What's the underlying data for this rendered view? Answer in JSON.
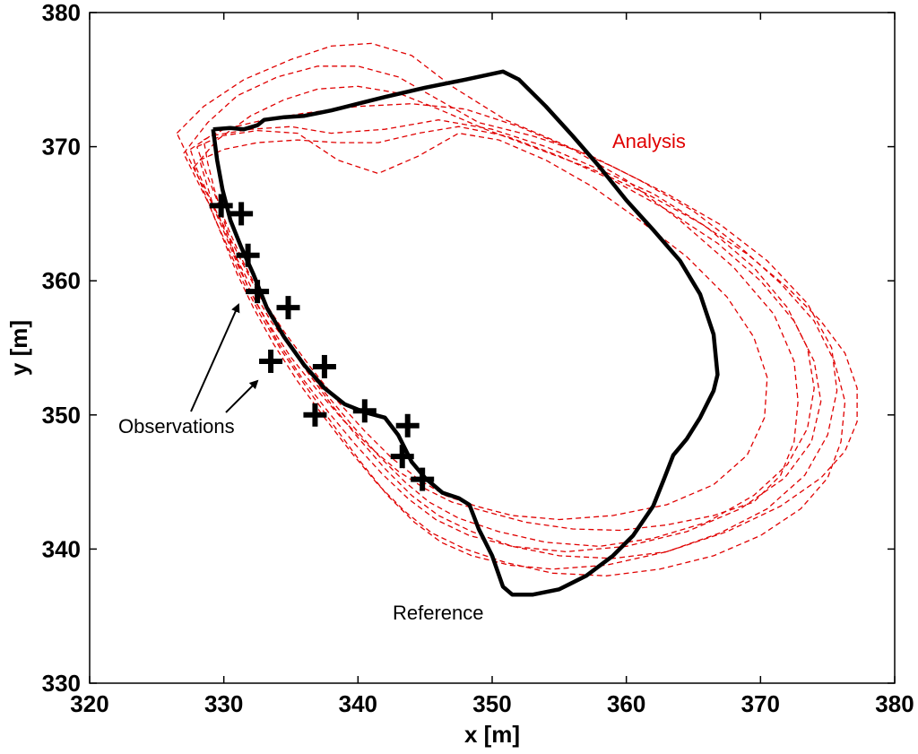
{
  "chart_data": {
    "type": "line",
    "title": "",
    "xlabel": "x [m]",
    "ylabel": "y [m]",
    "xlim": [
      320,
      380
    ],
    "ylim": [
      330,
      380
    ],
    "xticks": [
      "320",
      "330",
      "340",
      "350",
      "360",
      "370",
      "380"
    ],
    "yticks": [
      "330",
      "340",
      "350",
      "360",
      "370",
      "380"
    ],
    "grid": false,
    "annotations": {
      "analysis": "Analysis",
      "observations": "Observations",
      "reference": "Reference"
    },
    "colors": {
      "reference": "#000000",
      "analysis": "#e00000",
      "observations": "#000000"
    },
    "series": [
      {
        "role": "reference",
        "style": "solid",
        "x": [
          329.2,
          330.5,
          331.5,
          332.5,
          333.0,
          334.5,
          336.0,
          338.0,
          340.0,
          342.0,
          345.0,
          348.0,
          350.8,
          352.0,
          354.0,
          356.0,
          358.0,
          360.0,
          362.0,
          364.0,
          365.5,
          366.5,
          366.8,
          366.5,
          365.5,
          364.5,
          363.5,
          362.8,
          362.0,
          360.5,
          359.0,
          357.0,
          355.0,
          353.0,
          351.5,
          350.8,
          350.0,
          349.0,
          348.3,
          347.5,
          346.3,
          345.0,
          344.0,
          343.0,
          342.0,
          340.5,
          339.0,
          337.5,
          336.0,
          334.5,
          333.2,
          332.2,
          331.3,
          330.5,
          329.9,
          329.5,
          329.2
        ],
        "y": [
          371.3,
          371.4,
          371.3,
          371.6,
          372.0,
          372.2,
          372.3,
          372.7,
          373.2,
          373.7,
          374.4,
          375.0,
          375.6,
          375.0,
          373.0,
          370.8,
          368.5,
          366.0,
          363.8,
          361.5,
          359.0,
          356.0,
          353.0,
          351.8,
          349.8,
          348.2,
          347.0,
          345.2,
          343.2,
          341.0,
          339.5,
          338.0,
          337.0,
          336.6,
          336.6,
          337.2,
          339.5,
          341.5,
          343.3,
          343.8,
          344.2,
          345.3,
          346.5,
          348.5,
          349.8,
          350.2,
          350.8,
          352.0,
          353.7,
          355.8,
          358.0,
          360.5,
          362.5,
          364.5,
          366.8,
          369.0,
          371.3
        ]
      },
      {
        "role": "analysis",
        "style": "dashed",
        "x": [
          328.5,
          330,
          333,
          336,
          340,
          344,
          348,
          352,
          356,
          360,
          364,
          368,
          371,
          372.5,
          372.8,
          372.5,
          371.5,
          369.5,
          366.5,
          363,
          359.5,
          356,
          352.5,
          349.5,
          347,
          345,
          343,
          341,
          339,
          337,
          335,
          333.2,
          331.8,
          330.8,
          330,
          329.3,
          328.8,
          328.5
        ],
        "y": [
          370.5,
          371.3,
          372.0,
          372.5,
          373.0,
          373.2,
          372.8,
          371.5,
          369.8,
          367.5,
          364.5,
          361.0,
          357.5,
          354.0,
          351.0,
          348.0,
          345.5,
          343.5,
          342.5,
          341.8,
          341.4,
          341.5,
          342.0,
          342.8,
          343.5,
          344.5,
          345.8,
          347.5,
          349.5,
          351.8,
          354.3,
          357.0,
          359.5,
          362.0,
          364.5,
          366.8,
          368.8,
          370.5
        ]
      },
      {
        "role": "analysis",
        "style": "dashed",
        "x": [
          327.5,
          329,
          332,
          335,
          338,
          342,
          346,
          350,
          354,
          358,
          362,
          366,
          369.5,
          372,
          373.5,
          374,
          373.5,
          372,
          369.5,
          366,
          362,
          358,
          354,
          350.5,
          347.5,
          345.3,
          343.5,
          341.5,
          339.5,
          337.5,
          335.5,
          333.5,
          332,
          330.8,
          329.8,
          328.8,
          328,
          327.5
        ],
        "y": [
          369.8,
          370.8,
          371.3,
          371.5,
          371.0,
          371.3,
          372.0,
          371.3,
          370.0,
          368.3,
          366.5,
          364.0,
          361.0,
          358.0,
          355.0,
          352.0,
          349.0,
          346.3,
          344.0,
          342.0,
          340.8,
          340.2,
          340.5,
          341.3,
          342.3,
          343.5,
          345.0,
          347.0,
          349.3,
          351.7,
          354.3,
          357.0,
          359.6,
          362.0,
          364.4,
          366.5,
          368.3,
          369.8
        ]
      },
      {
        "role": "analysis",
        "style": "dashed",
        "x": [
          326.5,
          328.5,
          331.5,
          335,
          338,
          341,
          344,
          347,
          351,
          355,
          359,
          363,
          367,
          370.5,
          373.5,
          375.3,
          375.7,
          375,
          373.3,
          370.5,
          367,
          363,
          359,
          355,
          351.5,
          348.5,
          346,
          344,
          342,
          340,
          338,
          336,
          334.2,
          332.7,
          331.4,
          330.2,
          329,
          327.7,
          326.5
        ],
        "y": [
          371.0,
          373.0,
          375.0,
          376.5,
          377.5,
          377.7,
          376.8,
          374.5,
          372.0,
          370.3,
          368.5,
          366.5,
          364.2,
          361.5,
          358.3,
          355.0,
          351.8,
          348.5,
          345.5,
          343.0,
          341.2,
          339.8,
          339.3,
          339.5,
          340.2,
          341.3,
          342.5,
          344.0,
          346.0,
          348.3,
          350.8,
          353.5,
          356.2,
          358.8,
          361.3,
          363.7,
          366.0,
          368.5,
          371.0
        ]
      },
      {
        "role": "analysis",
        "style": "dashed",
        "x": [
          327,
          328.8,
          331,
          334,
          337,
          340,
          343,
          346,
          349,
          353,
          357,
          361,
          365,
          368.5,
          371.5,
          374,
          375.5,
          376.3,
          376,
          375,
          373,
          370,
          366.5,
          362.5,
          358.5,
          354.5,
          351,
          348,
          345.5,
          343.5,
          341.5,
          339.5,
          337.5,
          335.5,
          333.7,
          332.2,
          331,
          330,
          329,
          328,
          327
        ],
        "y": [
          369.5,
          371.8,
          373.8,
          375.2,
          376.0,
          376.0,
          375.2,
          373.5,
          371.8,
          370.8,
          369.5,
          367.5,
          365.2,
          362.5,
          359.8,
          357.0,
          354.0,
          351.0,
          348.0,
          345.3,
          343.0,
          341.0,
          339.5,
          338.5,
          338.0,
          338.2,
          339.0,
          340.0,
          341.2,
          342.8,
          344.8,
          347.2,
          349.8,
          352.5,
          355.3,
          358.0,
          360.5,
          363.0,
          365.5,
          367.5,
          369.5
        ]
      },
      {
        "role": "analysis",
        "style": "dashed",
        "x": [
          327.8,
          329.5,
          332,
          334.5,
          337,
          340,
          343,
          346,
          349.5,
          353.5,
          357.5,
          361.5,
          365.5,
          369,
          372,
          374.5,
          376.3,
          377.2,
          377.2,
          376.3,
          374.5,
          371.5,
          367.5,
          363,
          358.5,
          354.5,
          351.3,
          348.5,
          346.2,
          344.2,
          342.2,
          340.2,
          338.2,
          336.2,
          334.3,
          332.7,
          331.4,
          330.3,
          329.3,
          328.5,
          327.8
        ],
        "y": [
          368.5,
          370.5,
          372.3,
          373.5,
          374.3,
          374.5,
          374.0,
          372.8,
          371.3,
          369.8,
          368.3,
          366.5,
          364.3,
          362.0,
          359.5,
          357.0,
          354.6,
          352.0,
          349.5,
          347.3,
          345.3,
          343.2,
          341.3,
          339.8,
          338.8,
          338.5,
          338.8,
          339.5,
          340.5,
          342.0,
          344.0,
          346.5,
          349.2,
          352.0,
          354.8,
          357.5,
          360.0,
          362.5,
          364.7,
          366.7,
          368.5
        ]
      },
      {
        "role": "analysis",
        "style": "dashed",
        "x": [
          328.2,
          330,
          332.5,
          335.5,
          338.5,
          341.5,
          344.5,
          347.5,
          351,
          355,
          359,
          363,
          366.8,
          370,
          372.5,
          374,
          374.5,
          373.8,
          371.8,
          368.5,
          364.5,
          360,
          355.5,
          351.5,
          348.3,
          345.8,
          343.8,
          341.8,
          339.8,
          337.8,
          335.8,
          334,
          332.5,
          331.2,
          330.2,
          329.3,
          328.7,
          328.2
        ],
        "y": [
          369.0,
          369.8,
          370.3,
          370.5,
          370.3,
          370.3,
          371.0,
          371.5,
          370.8,
          369.3,
          367.5,
          365.3,
          362.8,
          360.0,
          357.0,
          354.0,
          351.0,
          348.0,
          345.3,
          343.0,
          341.3,
          340.2,
          339.8,
          340.2,
          341.0,
          342.2,
          343.7,
          345.6,
          347.8,
          350.2,
          352.8,
          355.5,
          358.2,
          360.8,
          363.2,
          365.3,
          367.3,
          369.0
        ]
      },
      {
        "role": "analysis",
        "style": "dashed",
        "x": [
          328,
          329.8,
          332.5,
          335.5,
          338.5,
          341.5,
          344.5,
          347.5,
          350.5,
          354,
          357.5,
          361,
          364.5,
          367.5,
          369.5,
          370.5,
          370.3,
          369,
          366.5,
          363,
          359,
          355,
          351.5,
          348.8,
          346.5,
          344.5,
          342.5,
          340.5,
          338.5,
          336.5,
          334.5,
          332.8,
          331.5,
          330.4,
          329.5,
          328.7,
          328
        ],
        "y": [
          370.0,
          370.8,
          371.2,
          371.0,
          369.0,
          368.0,
          369.3,
          371.0,
          370.5,
          369.0,
          367.0,
          364.5,
          361.8,
          358.8,
          355.8,
          352.8,
          349.8,
          347.0,
          344.8,
          343.3,
          342.5,
          342.2,
          342.5,
          343.2,
          344.0,
          345.2,
          346.8,
          348.8,
          351.0,
          353.5,
          356.2,
          358.8,
          361.3,
          363.7,
          366.0,
          368.0,
          370.0
        ]
      }
    ],
    "observations": {
      "marker": "plus",
      "x": [
        329.8,
        331.3,
        331.8,
        332.5,
        334.8,
        333.5,
        337.5,
        336.8,
        340.5,
        343.7,
        343.3,
        344.8
      ],
      "y": [
        365.6,
        365.0,
        361.9,
        359.2,
        358.0,
        354.0,
        353.6,
        350.0,
        350.3,
        349.2,
        346.9,
        345.2
      ]
    }
  }
}
